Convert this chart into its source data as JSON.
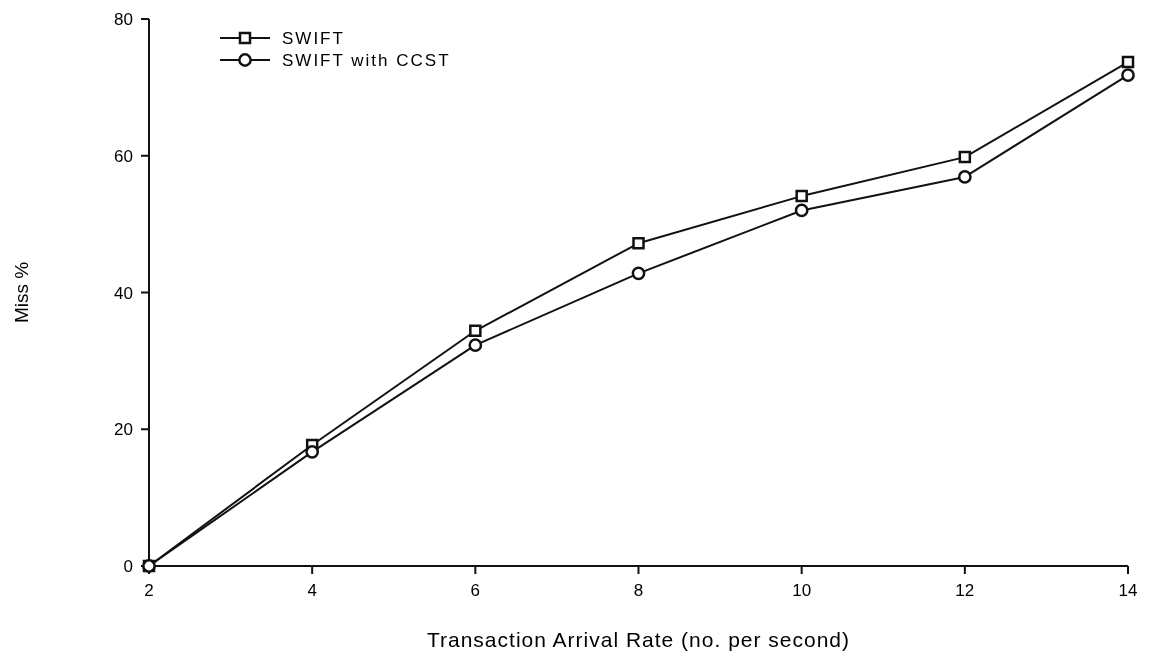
{
  "chart_data": {
    "type": "line",
    "xlabel": "Transaction Arrival Rate (no. per second)",
    "ylabel": "Miss %",
    "x": [
      2,
      4,
      6,
      8,
      10,
      12,
      14
    ],
    "series": [
      {
        "name": "SWIFT",
        "color": "#111111",
        "marker": "square",
        "values": [
          0,
          17.7,
          34.4,
          47.2,
          54.1,
          59.8,
          73.7
        ]
      },
      {
        "name": "SWIFT with CCST",
        "color": "#111111",
        "marker": "circle",
        "values": [
          0,
          16.7,
          32.3,
          42.8,
          52.0,
          56.9,
          71.8
        ]
      }
    ],
    "xlim": [
      2,
      14
    ],
    "xticks": [
      2,
      4,
      6,
      8,
      10,
      12,
      14
    ],
    "ylim": [
      0,
      80
    ],
    "yticks": [
      0,
      20,
      40,
      60,
      80
    ],
    "grid": false,
    "legend": "top left",
    "line_style": "solid"
  }
}
